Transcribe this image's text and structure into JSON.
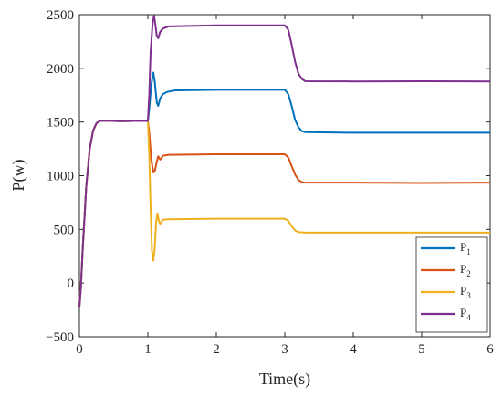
{
  "chart_data": {
    "type": "line",
    "xlabel": "Time(s)",
    "ylabel": "P(w)",
    "xlim": [
      0,
      6
    ],
    "ylim": [
      -500,
      2500
    ],
    "xticks": [
      "0",
      "1",
      "2",
      "3",
      "4",
      "5",
      "6"
    ],
    "yticks": [
      "−500",
      "0",
      "500",
      "1000",
      "1500",
      "2000",
      "2500"
    ],
    "grid": false,
    "legend_position": "bottom-right",
    "series": [
      {
        "name": "P1",
        "legend_main": "P",
        "legend_sub": "1",
        "color": "#0072BD",
        "points": [
          [
            0,
            -220
          ],
          [
            0.02,
            -60
          ],
          [
            0.05,
            350
          ],
          [
            0.1,
            900
          ],
          [
            0.15,
            1250
          ],
          [
            0.2,
            1420
          ],
          [
            0.25,
            1490
          ],
          [
            0.3,
            1510
          ],
          [
            0.4,
            1512
          ],
          [
            0.6,
            1508
          ],
          [
            0.8,
            1510
          ],
          [
            1.0,
            1510
          ],
          [
            1.02,
            1620
          ],
          [
            1.05,
            1850
          ],
          [
            1.08,
            1960
          ],
          [
            1.1,
            1880
          ],
          [
            1.13,
            1680
          ],
          [
            1.15,
            1650
          ],
          [
            1.18,
            1720
          ],
          [
            1.22,
            1760
          ],
          [
            1.28,
            1780
          ],
          [
            1.4,
            1795
          ],
          [
            2.0,
            1800
          ],
          [
            2.5,
            1800
          ],
          [
            3.0,
            1800
          ],
          [
            3.05,
            1760
          ],
          [
            3.1,
            1650
          ],
          [
            3.15,
            1520
          ],
          [
            3.2,
            1450
          ],
          [
            3.25,
            1415
          ],
          [
            3.3,
            1405
          ],
          [
            4.0,
            1400
          ],
          [
            5.0,
            1400
          ],
          [
            6.0,
            1400
          ]
        ]
      },
      {
        "name": "P2",
        "legend_main": "P",
        "legend_sub": "2",
        "color": "#D95319",
        "points": [
          [
            0,
            -220
          ],
          [
            0.02,
            -60
          ],
          [
            0.05,
            350
          ],
          [
            0.1,
            900
          ],
          [
            0.15,
            1250
          ],
          [
            0.2,
            1420
          ],
          [
            0.25,
            1490
          ],
          [
            0.3,
            1510
          ],
          [
            0.4,
            1512
          ],
          [
            0.6,
            1508
          ],
          [
            0.8,
            1510
          ],
          [
            1.0,
            1510
          ],
          [
            1.02,
            1400
          ],
          [
            1.05,
            1150
          ],
          [
            1.08,
            1030
          ],
          [
            1.1,
            1040
          ],
          [
            1.13,
            1130
          ],
          [
            1.15,
            1180
          ],
          [
            1.18,
            1150
          ],
          [
            1.22,
            1185
          ],
          [
            1.3,
            1195
          ],
          [
            2.0,
            1200
          ],
          [
            3.0,
            1200
          ],
          [
            3.05,
            1170
          ],
          [
            3.1,
            1090
          ],
          [
            3.15,
            1010
          ],
          [
            3.2,
            960
          ],
          [
            3.25,
            940
          ],
          [
            3.3,
            935
          ],
          [
            4.0,
            935
          ],
          [
            5.0,
            932
          ],
          [
            6.0,
            935
          ]
        ]
      },
      {
        "name": "P3",
        "legend_main": "P",
        "legend_sub": "3",
        "color": "#EDB120",
        "points": [
          [
            0,
            -220
          ],
          [
            0.02,
            -60
          ],
          [
            0.05,
            350
          ],
          [
            0.1,
            900
          ],
          [
            0.15,
            1250
          ],
          [
            0.2,
            1420
          ],
          [
            0.25,
            1490
          ],
          [
            0.3,
            1510
          ],
          [
            0.4,
            1512
          ],
          [
            0.6,
            1508
          ],
          [
            0.8,
            1510
          ],
          [
            1.0,
            1510
          ],
          [
            1.02,
            1200
          ],
          [
            1.04,
            700
          ],
          [
            1.06,
            300
          ],
          [
            1.08,
            210
          ],
          [
            1.1,
            320
          ],
          [
            1.12,
            560
          ],
          [
            1.14,
            650
          ],
          [
            1.16,
            580
          ],
          [
            1.18,
            550
          ],
          [
            1.22,
            590
          ],
          [
            1.3,
            595
          ],
          [
            2.0,
            600
          ],
          [
            3.0,
            600
          ],
          [
            3.05,
            580
          ],
          [
            3.1,
            530
          ],
          [
            3.15,
            490
          ],
          [
            3.2,
            475
          ],
          [
            3.3,
            470
          ],
          [
            4.0,
            470
          ],
          [
            5.0,
            470
          ],
          [
            6.0,
            470
          ]
        ]
      },
      {
        "name": "P4",
        "legend_main": "P",
        "legend_sub": "4",
        "color": "#7E2F8E",
        "points": [
          [
            0,
            -220
          ],
          [
            0.02,
            -60
          ],
          [
            0.05,
            350
          ],
          [
            0.1,
            900
          ],
          [
            0.15,
            1250
          ],
          [
            0.2,
            1420
          ],
          [
            0.25,
            1490
          ],
          [
            0.3,
            1510
          ],
          [
            0.4,
            1512
          ],
          [
            0.6,
            1508
          ],
          [
            0.8,
            1510
          ],
          [
            1.0,
            1510
          ],
          [
            1.02,
            1750
          ],
          [
            1.04,
            2150
          ],
          [
            1.07,
            2430
          ],
          [
            1.09,
            2490
          ],
          [
            1.11,
            2400
          ],
          [
            1.13,
            2300
          ],
          [
            1.15,
            2280
          ],
          [
            1.18,
            2340
          ],
          [
            1.22,
            2370
          ],
          [
            1.3,
            2390
          ],
          [
            2.0,
            2400
          ],
          [
            3.0,
            2400
          ],
          [
            3.05,
            2360
          ],
          [
            3.1,
            2220
          ],
          [
            3.15,
            2060
          ],
          [
            3.2,
            1950
          ],
          [
            3.25,
            1900
          ],
          [
            3.3,
            1880
          ],
          [
            4.0,
            1878
          ],
          [
            5.0,
            1880
          ],
          [
            6.0,
            1878
          ]
        ]
      }
    ]
  }
}
